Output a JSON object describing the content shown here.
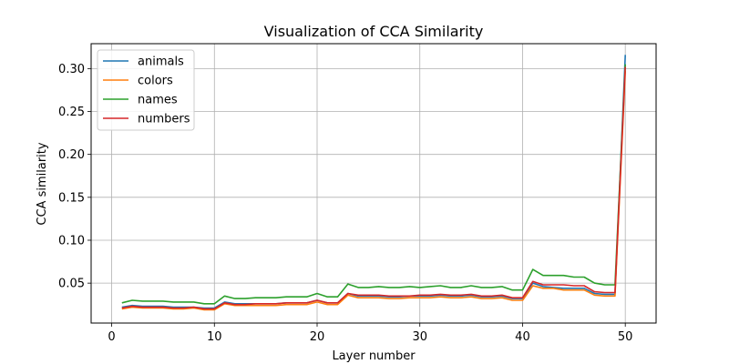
{
  "chart_data": {
    "type": "line",
    "title": "Visualization of CCA Similarity",
    "xlabel": "Layer number",
    "ylabel": "CCA similarity",
    "xlim": [
      -2,
      53
    ],
    "ylim": [
      0.0035,
      0.329
    ],
    "xticks": [
      0,
      10,
      20,
      30,
      40,
      50
    ],
    "xtick_labels": [
      "0",
      "10",
      "20",
      "30",
      "40",
      "50"
    ],
    "yticks": [
      0.05,
      0.1,
      0.15,
      0.2,
      0.25,
      0.3
    ],
    "ytick_labels": [
      "0.05",
      "0.10",
      "0.15",
      "0.20",
      "0.25",
      "0.30"
    ],
    "grid": true,
    "legend_position": "top-left",
    "x": [
      1,
      2,
      3,
      4,
      5,
      6,
      7,
      8,
      9,
      10,
      11,
      12,
      13,
      14,
      15,
      16,
      17,
      18,
      19,
      20,
      21,
      22,
      23,
      24,
      25,
      26,
      27,
      28,
      29,
      30,
      31,
      32,
      33,
      34,
      35,
      36,
      37,
      38,
      39,
      40,
      41,
      42,
      43,
      44,
      45,
      46,
      47,
      48,
      49,
      50
    ],
    "series": [
      {
        "name": "animals",
        "color": "#1f77b4",
        "values": [
          0.022,
          0.024,
          0.023,
          0.023,
          0.023,
          0.022,
          0.022,
          0.022,
          0.021,
          0.021,
          0.028,
          0.026,
          0.026,
          0.026,
          0.026,
          0.026,
          0.027,
          0.027,
          0.027,
          0.03,
          0.027,
          0.027,
          0.038,
          0.035,
          0.035,
          0.035,
          0.034,
          0.034,
          0.035,
          0.035,
          0.035,
          0.036,
          0.035,
          0.035,
          0.036,
          0.034,
          0.034,
          0.035,
          0.032,
          0.032,
          0.05,
          0.046,
          0.045,
          0.044,
          0.044,
          0.044,
          0.038,
          0.037,
          0.037,
          0.316
        ]
      },
      {
        "name": "colors",
        "color": "#ff7f0e",
        "values": [
          0.02,
          0.022,
          0.021,
          0.021,
          0.021,
          0.02,
          0.02,
          0.021,
          0.019,
          0.019,
          0.026,
          0.024,
          0.024,
          0.024,
          0.024,
          0.024,
          0.025,
          0.025,
          0.025,
          0.028,
          0.025,
          0.025,
          0.036,
          0.033,
          0.033,
          0.033,
          0.032,
          0.032,
          0.033,
          0.033,
          0.033,
          0.034,
          0.033,
          0.033,
          0.034,
          0.032,
          0.032,
          0.033,
          0.03,
          0.03,
          0.047,
          0.044,
          0.044,
          0.042,
          0.042,
          0.042,
          0.036,
          0.035,
          0.035,
          0.297
        ]
      },
      {
        "name": "names",
        "color": "#2ca02c",
        "values": [
          0.027,
          0.03,
          0.029,
          0.029,
          0.029,
          0.028,
          0.028,
          0.028,
          0.026,
          0.026,
          0.035,
          0.032,
          0.032,
          0.033,
          0.033,
          0.033,
          0.034,
          0.034,
          0.034,
          0.038,
          0.034,
          0.034,
          0.049,
          0.045,
          0.045,
          0.046,
          0.045,
          0.045,
          0.046,
          0.045,
          0.046,
          0.047,
          0.045,
          0.045,
          0.047,
          0.045,
          0.045,
          0.046,
          0.042,
          0.042,
          0.066,
          0.059,
          0.059,
          0.059,
          0.057,
          0.057,
          0.05,
          0.048,
          0.048,
          0.305
        ]
      },
      {
        "name": "numbers",
        "color": "#d62728",
        "values": [
          0.021,
          0.023,
          0.022,
          0.022,
          0.022,
          0.021,
          0.021,
          0.022,
          0.02,
          0.02,
          0.027,
          0.025,
          0.025,
          0.026,
          0.026,
          0.026,
          0.027,
          0.027,
          0.027,
          0.03,
          0.027,
          0.027,
          0.038,
          0.036,
          0.036,
          0.036,
          0.035,
          0.035,
          0.035,
          0.036,
          0.036,
          0.037,
          0.036,
          0.036,
          0.037,
          0.035,
          0.035,
          0.036,
          0.033,
          0.033,
          0.052,
          0.048,
          0.048,
          0.048,
          0.047,
          0.047,
          0.04,
          0.039,
          0.039,
          0.302
        ]
      }
    ]
  }
}
